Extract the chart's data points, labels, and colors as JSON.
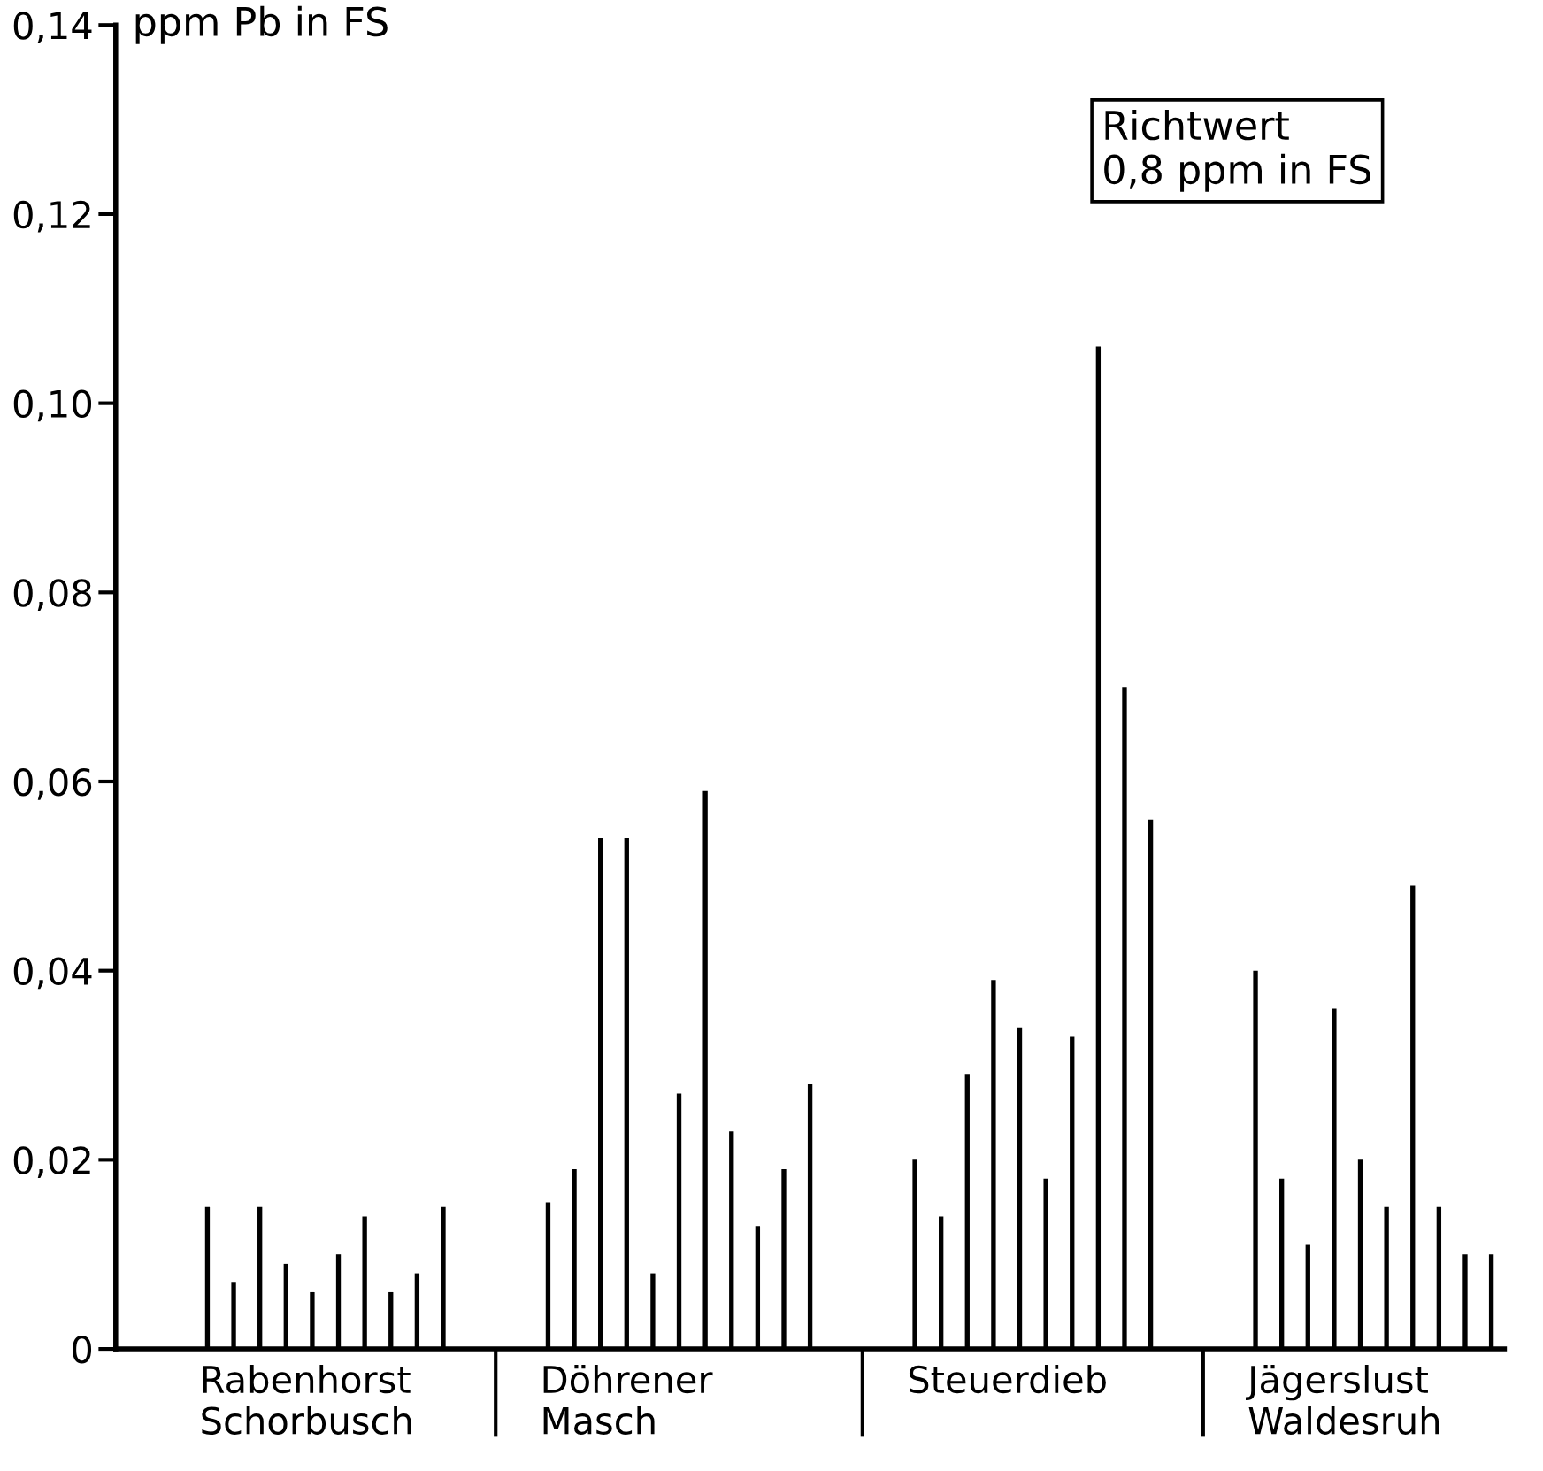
{
  "chart_data": {
    "type": "bar",
    "ylabel": "ppm Pb in FS",
    "categories": [
      null,
      null,
      null,
      null,
      null,
      null,
      null,
      null,
      null,
      null,
      null,
      null,
      null,
      null,
      null,
      null,
      null,
      null,
      null,
      null,
      null,
      null,
      null,
      null,
      null,
      null,
      null,
      null,
      null,
      null,
      null,
      null,
      null,
      null,
      null,
      null,
      null,
      null,
      null,
      null,
      null,
      null,
      null,
      null,
      null,
      null,
      null,
      null,
      null,
      null,
      null,
      null,
      null
    ],
    "values": [
      null,
      null,
      null,
      0.015,
      0.007,
      0.015,
      0.009,
      0.006,
      0.01,
      0.014,
      0.006,
      0.008,
      0.015,
      null,
      null,
      null,
      0.0155,
      0.019,
      0.054,
      0.054,
      0.008,
      0.027,
      0.059,
      0.023,
      0.013,
      0.019,
      0.028,
      null,
      null,
      null,
      0.02,
      0.014,
      0.029,
      0.039,
      0.034,
      0.018,
      0.033,
      0.106,
      0.07,
      0.056,
      null,
      null,
      null,
      0.04,
      0.018,
      0.011,
      0.036,
      0.02,
      0.015,
      0.049,
      0.015,
      0.01,
      0.01
    ],
    "color": "#000000",
    "ylim": [
      0,
      0.14
    ],
    "yticks": [
      0,
      {
        "value": 0.02,
        "label": "0,02"
      },
      {
        "value": 0.04,
        "label": "0,04"
      },
      {
        "value": 0.06,
        "label": "0,06"
      },
      {
        "value": 0.08,
        "label": "0,08"
      },
      {
        "value": 0.1,
        "label": "0,10"
      },
      {
        "value": 0.12,
        "label": "0,12"
      },
      {
        "value": 0.14,
        "label": "0,14"
      }
    ],
    "grid": false,
    "annotations": [
      "Rabenhorst\nSchorbusch",
      "Döhrener\nMasch",
      "Steuerdieb",
      "Jägerslust\nWaldesruh",
      "Richtwert\n0,8 ppm in FS"
    ]
  }
}
